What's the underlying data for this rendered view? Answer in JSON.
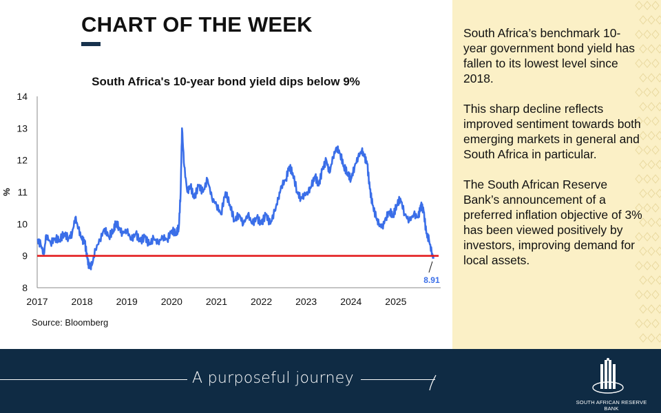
{
  "header": {
    "title": "CHART OF THE WEEK"
  },
  "chart_data": {
    "type": "line",
    "title": "South Africa's 10-year bond yield dips below 9%",
    "xlabel": "",
    "ylabel": "%",
    "x_tick_labels": [
      "2017",
      "2018",
      "2019",
      "2020",
      "2021",
      "2022",
      "2023",
      "2024",
      "2025"
    ],
    "y_ticks": [
      8,
      9,
      10,
      11,
      12,
      13,
      14
    ],
    "xlim": [
      2017.0,
      2026.0
    ],
    "ylim": [
      8,
      14
    ],
    "reference_line": {
      "value": 9,
      "color": "#e31a1c"
    },
    "annotation": {
      "label": "8.91",
      "x": 2025.8,
      "y": 8.91
    },
    "series": [
      {
        "name": "South Africa 10-year government bond yield",
        "color": "#3a6ee8",
        "points": [
          [
            2017.0,
            9.5
          ],
          [
            2017.08,
            9.35
          ],
          [
            2017.15,
            9.05
          ],
          [
            2017.2,
            9.65
          ],
          [
            2017.3,
            9.4
          ],
          [
            2017.4,
            9.55
          ],
          [
            2017.5,
            9.5
          ],
          [
            2017.6,
            9.7
          ],
          [
            2017.7,
            9.55
          ],
          [
            2017.78,
            9.7
          ],
          [
            2017.85,
            10.2
          ],
          [
            2017.92,
            9.85
          ],
          [
            2018.0,
            9.5
          ],
          [
            2018.06,
            9.45
          ],
          [
            2018.12,
            8.9
          ],
          [
            2018.16,
            8.65
          ],
          [
            2018.22,
            8.7
          ],
          [
            2018.3,
            9.2
          ],
          [
            2018.4,
            9.5
          ],
          [
            2018.5,
            9.85
          ],
          [
            2018.6,
            9.6
          ],
          [
            2018.7,
            9.8
          ],
          [
            2018.76,
            10.05
          ],
          [
            2018.82,
            9.9
          ],
          [
            2018.9,
            9.7
          ],
          [
            2019.0,
            9.8
          ],
          [
            2019.1,
            9.5
          ],
          [
            2019.2,
            9.7
          ],
          [
            2019.3,
            9.45
          ],
          [
            2019.4,
            9.6
          ],
          [
            2019.5,
            9.35
          ],
          [
            2019.6,
            9.55
          ],
          [
            2019.7,
            9.4
          ],
          [
            2019.8,
            9.6
          ],
          [
            2019.9,
            9.5
          ],
          [
            2020.0,
            9.8
          ],
          [
            2020.1,
            9.7
          ],
          [
            2020.16,
            9.9
          ],
          [
            2020.2,
            11.0
          ],
          [
            2020.23,
            13.0
          ],
          [
            2020.28,
            11.8
          ],
          [
            2020.35,
            11.0
          ],
          [
            2020.42,
            11.2
          ],
          [
            2020.5,
            10.8
          ],
          [
            2020.6,
            11.2
          ],
          [
            2020.7,
            11.0
          ],
          [
            2020.8,
            11.4
          ],
          [
            2020.9,
            10.8
          ],
          [
            2021.0,
            10.6
          ],
          [
            2021.1,
            10.3
          ],
          [
            2021.2,
            11.0
          ],
          [
            2021.3,
            10.6
          ],
          [
            2021.4,
            10.1
          ],
          [
            2021.5,
            10.3
          ],
          [
            2021.6,
            10.0
          ],
          [
            2021.7,
            10.3
          ],
          [
            2021.8,
            10.0
          ],
          [
            2021.9,
            10.2
          ],
          [
            2022.0,
            10.0
          ],
          [
            2022.1,
            10.3
          ],
          [
            2022.2,
            10.0
          ],
          [
            2022.3,
            10.4
          ],
          [
            2022.38,
            10.8
          ],
          [
            2022.45,
            11.2
          ],
          [
            2022.55,
            11.4
          ],
          [
            2022.62,
            11.8
          ],
          [
            2022.7,
            11.6
          ],
          [
            2022.8,
            11.0
          ],
          [
            2022.88,
            10.8
          ],
          [
            2022.95,
            10.9
          ],
          [
            2023.05,
            11.0
          ],
          [
            2023.12,
            11.2
          ],
          [
            2023.2,
            11.5
          ],
          [
            2023.28,
            11.2
          ],
          [
            2023.36,
            11.7
          ],
          [
            2023.45,
            12.0
          ],
          [
            2023.52,
            11.6
          ],
          [
            2023.6,
            12.1
          ],
          [
            2023.68,
            12.4
          ],
          [
            2023.76,
            12.2
          ],
          [
            2023.84,
            11.8
          ],
          [
            2023.92,
            11.6
          ],
          [
            2024.0,
            11.4
          ],
          [
            2024.08,
            11.8
          ],
          [
            2024.16,
            12.1
          ],
          [
            2024.24,
            12.3
          ],
          [
            2024.3,
            12.1
          ],
          [
            2024.36,
            11.9
          ],
          [
            2024.42,
            11.1
          ],
          [
            2024.48,
            10.6
          ],
          [
            2024.56,
            10.2
          ],
          [
            2024.62,
            10.0
          ],
          [
            2024.7,
            9.9
          ],
          [
            2024.78,
            10.2
          ],
          [
            2024.86,
            10.4
          ],
          [
            2024.94,
            10.25
          ],
          [
            2025.02,
            10.6
          ],
          [
            2025.1,
            10.8
          ],
          [
            2025.2,
            10.3
          ],
          [
            2025.3,
            10.1
          ],
          [
            2025.4,
            10.3
          ],
          [
            2025.5,
            10.2
          ],
          [
            2025.56,
            10.6
          ],
          [
            2025.62,
            10.4
          ],
          [
            2025.68,
            9.7
          ],
          [
            2025.74,
            9.5
          ],
          [
            2025.8,
            9.1
          ],
          [
            2025.84,
            8.91
          ]
        ]
      }
    ]
  },
  "source": "Source: Bloomberg",
  "side_panel": {
    "paragraphs": [
      "South Africa’s benchmark 10-year government bond yield has fallen to its lowest level since 2018.",
      "This sharp decline reflects improved sentiment towards both emerging markets in general and South Africa in particular.",
      "The South African Reserve Bank’s announcement of a preferred inflation objective of 3% has been viewed positively by investors, improving demand for local assets."
    ]
  },
  "footer": {
    "tagline": "A purposeful journey",
    "org_name": "SOUTH AFRICAN RESERVE BANK"
  },
  "colors": {
    "navy": "#0f2b44",
    "panel": "#fbf0c6",
    "series": "#3a6ee8",
    "reference": "#e31a1c"
  }
}
